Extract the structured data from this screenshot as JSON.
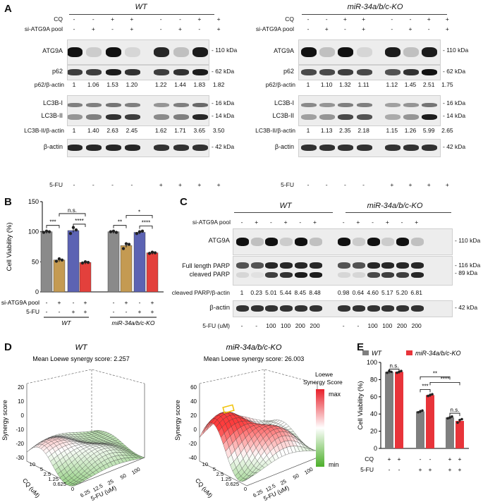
{
  "panel_letters": {
    "A": "A",
    "B": "B",
    "C": "C",
    "D": "D",
    "E": "E"
  },
  "panelA": {
    "wt": {
      "title": "WT",
      "row_labels": {
        "cq": "CQ",
        "si": "si-ATG9A pool",
        "fu": "5-FU"
      },
      "cq": [
        "-",
        "-",
        "+",
        "+",
        "-",
        "-",
        "+",
        "+"
      ],
      "si": [
        "-",
        "+",
        "-",
        "+",
        "-",
        "+",
        "-",
        "+"
      ],
      "fu": [
        "-",
        "-",
        "-",
        "-",
        "+",
        "+",
        "+",
        "+"
      ],
      "blots": {
        "atg9a": "ATG9A",
        "p62": "p62",
        "lc3b1": "LC3B-I",
        "lc3b2": "LC3B-II",
        "actin": "β-actin"
      },
      "sizes": {
        "atg9a": "110 kDa",
        "p62": "62 kDa",
        "lc3b1": "16 kDa",
        "lc3b2": "14 kDa",
        "actin": "42 kDa"
      },
      "p62_ratio_label": "p62/β-actin",
      "p62_ratio": [
        "1",
        "1.06",
        "1.53",
        "1.20",
        "1.22",
        "1.44",
        "1.83",
        "1.82"
      ],
      "lc3_ratio_label": "LC3B-II/β-actin",
      "lc3_ratio": [
        "1",
        "1.40",
        "2.63",
        "2.45",
        "1.62",
        "1.71",
        "3.65",
        "3.50"
      ]
    },
    "ko": {
      "title": "miR-34a/b/c-KO",
      "row_labels": {
        "cq": "CQ",
        "si": "si-ATG9A pool",
        "fu": "5-FU"
      },
      "cq": [
        "-",
        "-",
        "+",
        "+",
        "-",
        "-",
        "+",
        "+"
      ],
      "si": [
        "-",
        "+",
        "-",
        "+",
        "-",
        "+",
        "-",
        "+"
      ],
      "fu": [
        "-",
        "-",
        "-",
        "-",
        "+",
        "+",
        "+",
        "+"
      ],
      "blots": {
        "atg9a": "ATG9A",
        "p62": "p62",
        "lc3b1": "LC3B-I",
        "lc3b2": "LC3B-II",
        "actin": "β-actin"
      },
      "sizes": {
        "atg9a": "110 kDa",
        "p62": "62 kDa",
        "lc3b1": "16 kDa",
        "lc3b2": "14 kDa",
        "actin": "42 kDa"
      },
      "p62_ratio_label": "p62/β-actin",
      "p62_ratio": [
        "1",
        "1.10",
        "1.32",
        "1.11",
        "1.12",
        "1.45",
        "2.51",
        "1.75"
      ],
      "lc3_ratio_label": "LC3B-II/β-actin",
      "lc3_ratio": [
        "1",
        "1.13",
        "2.35",
        "2.18",
        "1.15",
        "1.26",
        "5.99",
        "2.65"
      ]
    }
  },
  "panelC": {
    "wt_title": "WT",
    "ko_title": "miR-34a/b/c-KO",
    "si_label": "si-ATG9A pool",
    "si": [
      "-",
      "+",
      "-",
      "+",
      "-",
      "+",
      "-",
      "+",
      "-",
      "+",
      "-",
      "+"
    ],
    "atg9a": "ATG9A",
    "atg9a_size": "110 kDa",
    "parp_full": "Full length PARP",
    "parp_cleaved": "cleaved PARP",
    "parp_full_size": "116 kDa",
    "parp_cleaved_size": "89 kDa",
    "ratio_label": "cleaved PARP/β-actin",
    "ratio": [
      "1",
      "0.23",
      "5.01",
      "5.44",
      "8.45",
      "8.48",
      "0.98",
      "0.64",
      "4.60",
      "5.17",
      "5.20",
      "6.81"
    ],
    "actin": "β-actin",
    "actin_size": "42 kDa",
    "fu_label": "5-FU (uM)",
    "fu": [
      "-",
      "-",
      "100",
      "100",
      "200",
      "200",
      "-",
      "-",
      "100",
      "100",
      "200",
      "200"
    ]
  },
  "panelD": {
    "wt_title": "WT",
    "ko_title": "miR-34a/b/c-KO",
    "wt_score": "Mean Loewe synergy score: 2.257",
    "ko_score": "Mean Loewe synergy score: 26.003",
    "zlabel": "Synergy score",
    "xlabel": "5-FU (uM)",
    "ylabel": "CQ (uM)",
    "wt_zticks": [
      "20",
      "10",
      "0",
      "-10",
      "-20",
      "-30"
    ],
    "ko_zticks": [
      "60",
      "40",
      "20",
      "0",
      "-20",
      "-40"
    ],
    "cq_ticks": [
      "10",
      "5",
      "2.5",
      "1.25",
      "0.625",
      "0"
    ],
    "fu_ticks": [
      "6.25",
      "12.5",
      "25",
      "50",
      "100"
    ],
    "legend_title": "Loewe Synergy Score",
    "legend_max": "max",
    "legend_min": "min",
    "colors": {
      "max": "#e8202a",
      "mid": "#ffffff",
      "min": "#4caf2a"
    }
  },
  "chart_data": [
    {
      "type": "bar",
      "panel": "B",
      "title": "",
      "ylabel": "Cell Viability (%)",
      "ylim": [
        0,
        150
      ],
      "yticks": [
        "0",
        "50",
        "100",
        "150"
      ],
      "row_labels": {
        "si": "si-ATG9A pool",
        "fu": "5-FU"
      },
      "categories": [
        "WT -/-",
        "WT +/-",
        "WT -/+",
        "WT +/+",
        "KO -/-",
        "KO +/-",
        "KO -/+",
        "KO +/+"
      ],
      "si": [
        "-",
        "+",
        "-",
        "+",
        "-",
        "+",
        "-",
        "+"
      ],
      "fu": [
        "-",
        "-",
        "+",
        "+",
        "-",
        "-",
        "+",
        "+"
      ],
      "values": [
        100,
        53,
        102,
        49,
        100,
        77,
        99,
        65
      ],
      "points": [
        [
          99,
          101,
          100
        ],
        [
          51,
          55,
          53
        ],
        [
          97,
          107,
          103
        ],
        [
          48,
          50,
          49
        ],
        [
          100,
          101,
          99
        ],
        [
          72,
          80,
          79
        ],
        [
          97,
          100,
          101
        ],
        [
          64,
          66,
          65
        ]
      ],
      "colors": [
        "#8a8a8a",
        "#c49a52",
        "#5c63b3",
        "#e3403c",
        "#8a8a8a",
        "#c49a52",
        "#5c63b3",
        "#e3403c"
      ],
      "group_labels": [
        "WT",
        "miR-34a/b/c-KO"
      ],
      "significance": [
        {
          "from": 0,
          "to": 1,
          "label": "***"
        },
        {
          "from": 2,
          "to": 3,
          "label": "****"
        },
        {
          "from": 1,
          "to": 3,
          "label": "n.s."
        },
        {
          "from": 4,
          "to": 5,
          "label": "**"
        },
        {
          "from": 6,
          "to": 7,
          "label": "****"
        },
        {
          "from": 5,
          "to": 7,
          "label": "*"
        }
      ]
    },
    {
      "type": "bar",
      "panel": "E",
      "title": "",
      "ylabel": "Cell Viability (%)",
      "ylim": [
        0,
        100
      ],
      "yticks": [
        "0",
        "20",
        "40",
        "60",
        "80",
        "100"
      ],
      "legend": [
        "WT",
        "miR-34a/b/c-KO"
      ],
      "legend_colors": [
        "#7f7f7f",
        "#e8343a"
      ],
      "row_labels": {
        "cq": "CQ",
        "fu": "5-FU"
      },
      "cq": [
        "+",
        "+",
        "-",
        "-",
        "+",
        "+"
      ],
      "fu": [
        "-",
        "-",
        "+",
        "+",
        "+",
        "+"
      ],
      "series": [
        {
          "name": "WT",
          "values": [
            89,
            43,
            36
          ]
        },
        {
          "name": "miR-34a/b/c-KO",
          "values": [
            89,
            62,
            32
          ]
        }
      ],
      "points": [
        [
          88,
          90,
          89
        ],
        [
          88,
          89,
          90
        ],
        [
          42,
          43,
          44
        ],
        [
          61,
          62,
          63
        ],
        [
          35,
          36,
          37
        ],
        [
          30,
          33,
          34
        ]
      ],
      "significance": [
        {
          "from": 0,
          "to": 1,
          "label": "n.s."
        },
        {
          "from": 2,
          "to": 3,
          "label": "***"
        },
        {
          "from": 2,
          "to": 4,
          "label": "**"
        },
        {
          "from": 3,
          "to": 5,
          "label": "****"
        },
        {
          "from": 4,
          "to": 5,
          "label": "n.s."
        }
      ]
    }
  ]
}
